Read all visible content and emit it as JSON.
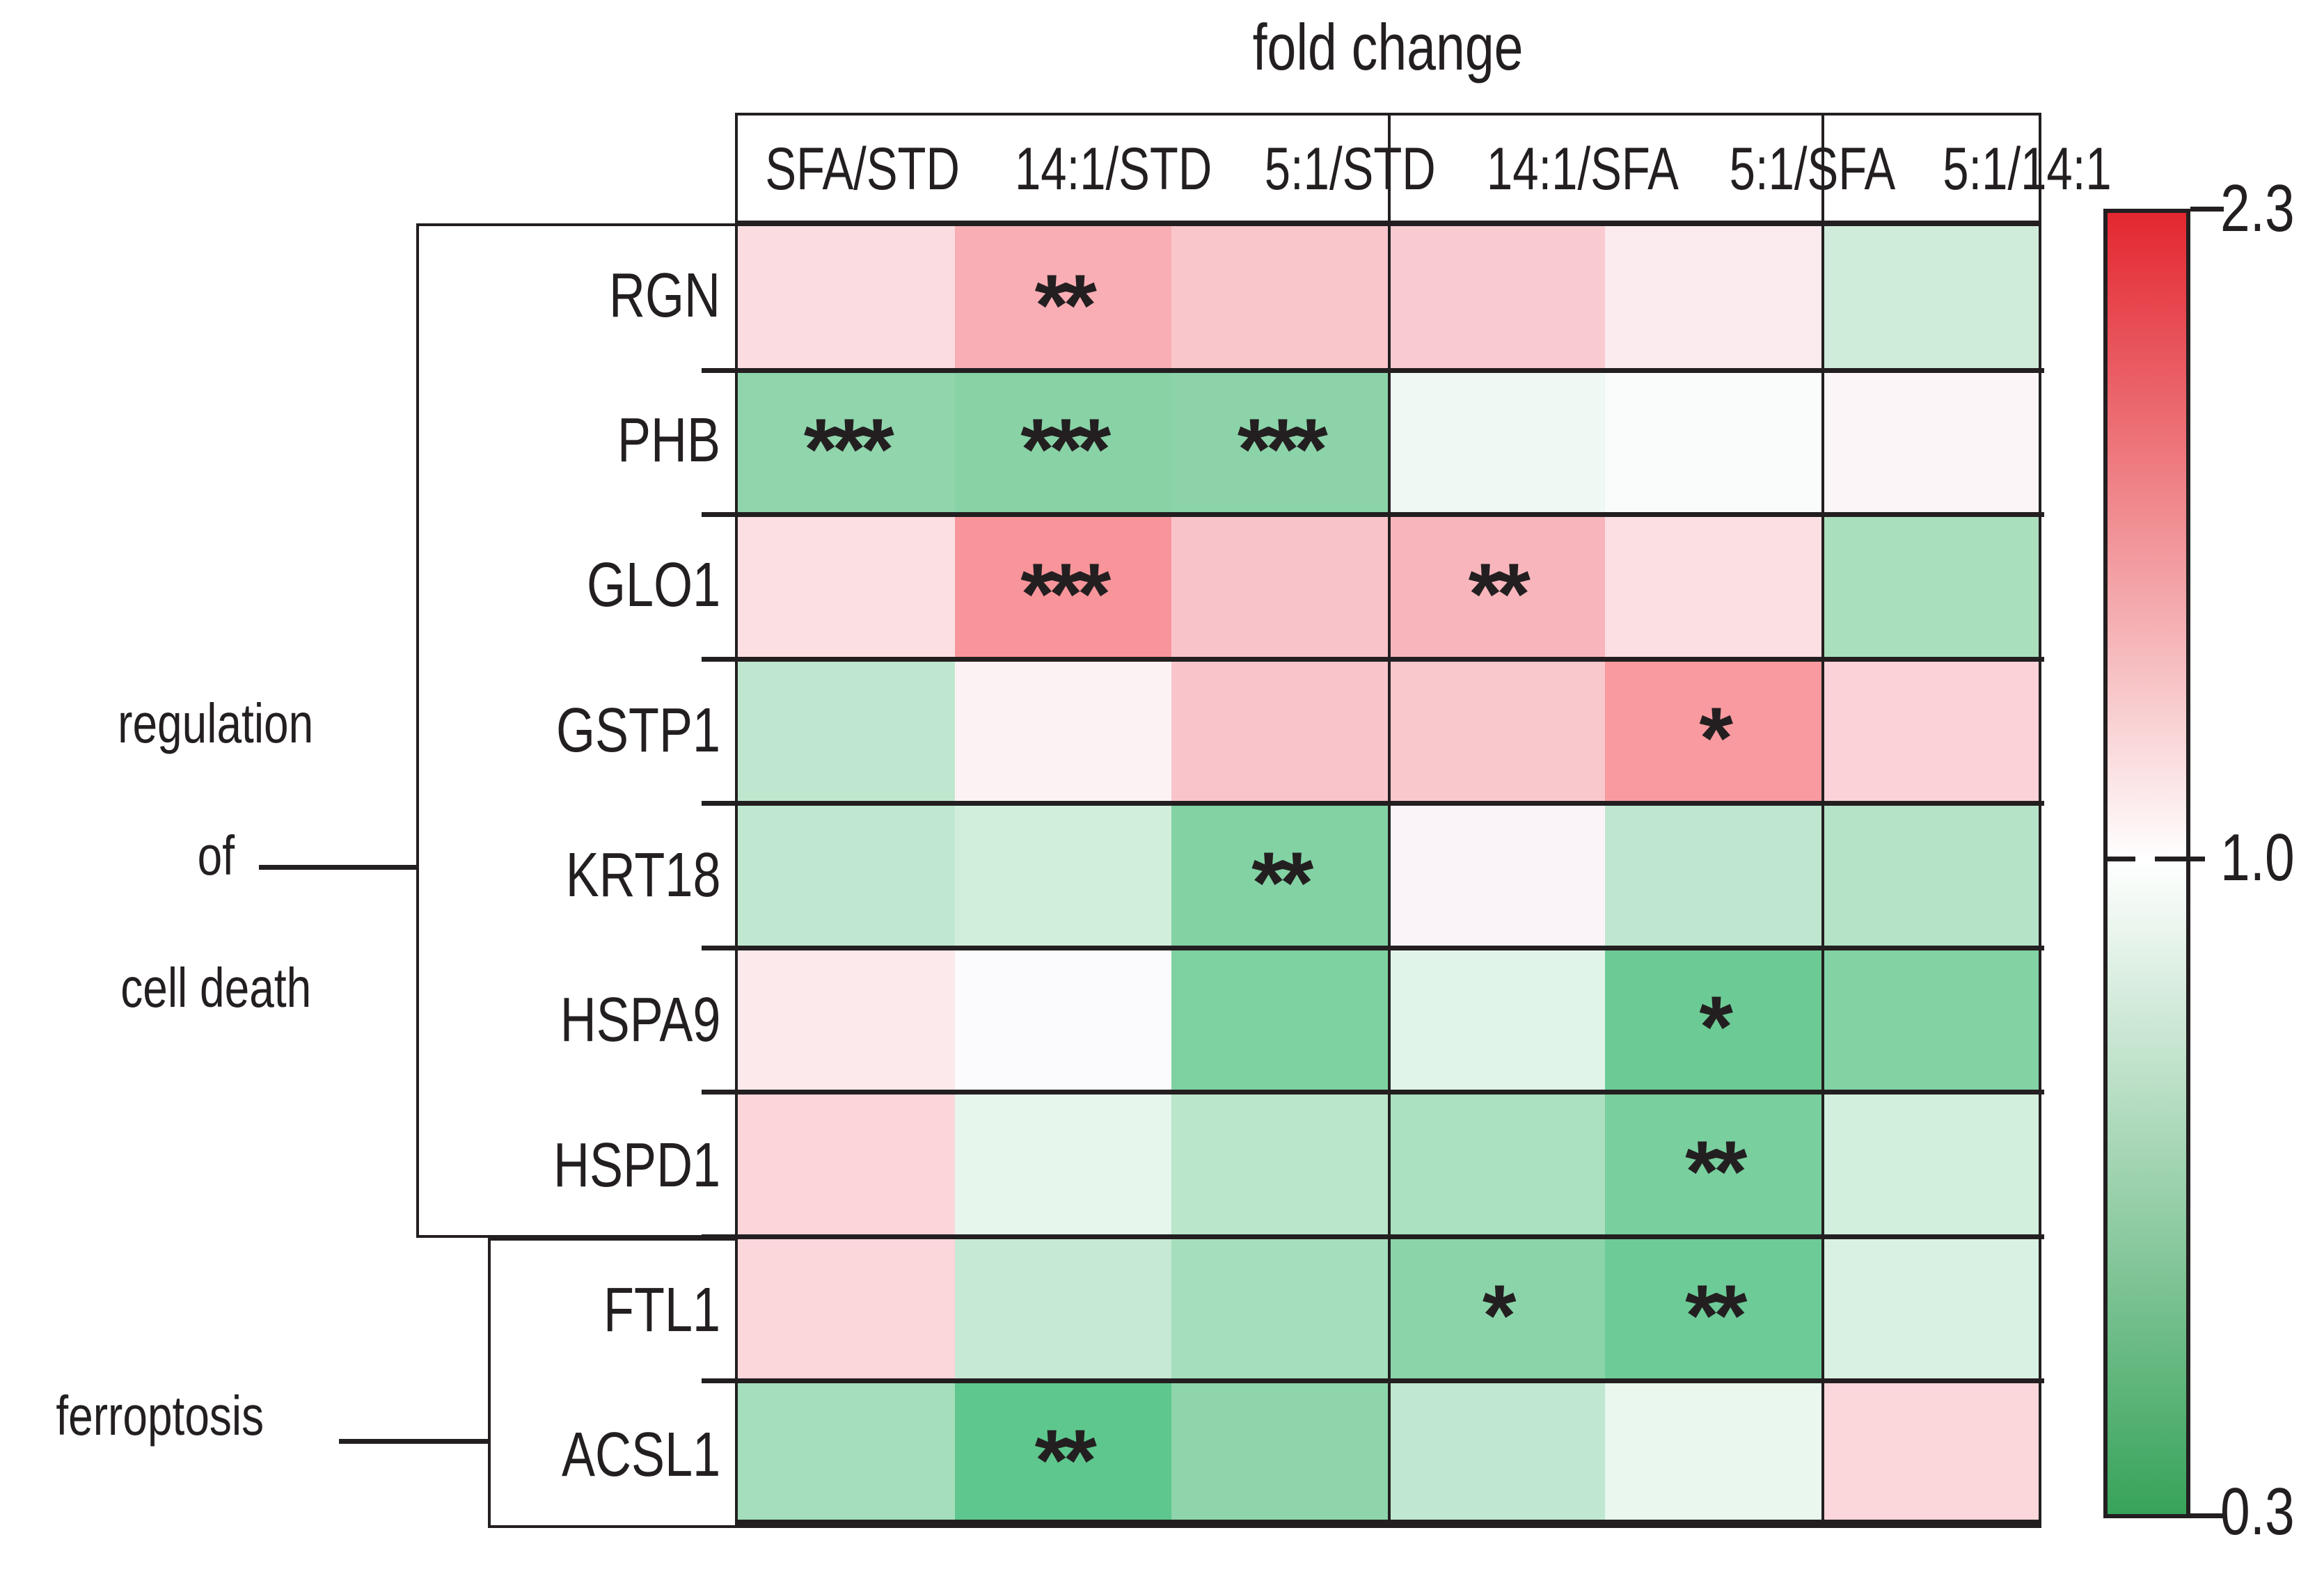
{
  "title": "fold change",
  "columns": [
    "SFA/STD",
    "14:1/STD",
    "5:1/STD",
    "14:1/SFA",
    "5:1/SFA",
    "5:1/14:1"
  ],
  "groups": [
    {
      "name": "regulation of cell death",
      "label_lines": [
        "regulation",
        "of",
        "cell death"
      ],
      "genes": [
        "RGN",
        "PHB",
        "GLO1",
        "GSTP1",
        "KRT18",
        "HSPA9",
        "HSPD1"
      ]
    },
    {
      "name": "ferroptosis",
      "label_lines": [
        "ferroptosis"
      ],
      "genes": [
        "FTL1",
        "ACSL1"
      ]
    }
  ],
  "rows": [
    {
      "gene": "RGN",
      "colors": [
        "#fbdce0",
        "#f8aeb4",
        "#f9c6cb",
        "#f9cbd1",
        "#fcebee",
        "#cfecdb"
      ],
      "stars": [
        "",
        "**",
        "",
        "",
        "",
        ""
      ]
    },
    {
      "gene": "PHB",
      "colors": [
        "#90d5ac",
        "#88d2a6",
        "#8cd3a9",
        "#eff9f4",
        "#fafcfc",
        "#fbf5f8"
      ],
      "stars": [
        "***",
        "***",
        "***",
        "",
        "",
        ""
      ]
    },
    {
      "gene": "GLO1",
      "colors": [
        "#fbdfe2",
        "#f8959b",
        "#f9c4c9",
        "#f8b6bc",
        "#fbdfe3",
        "#aadfbe"
      ],
      "stars": [
        "",
        "***",
        "",
        "**",
        "",
        ""
      ]
    },
    {
      "gene": "GSTP1",
      "colors": [
        "#bfe7cf",
        "#fcf2f4",
        "#f9c5ca",
        "#f9c8cd",
        "#f89aa0",
        "#fad2d7"
      ],
      "stars": [
        "",
        "",
        "",
        "",
        "*",
        ""
      ]
    },
    {
      "gene": "KRT18",
      "colors": [
        "#c0e8d0",
        "#d1eedd",
        "#83d2a4",
        "#faf4f8",
        "#bfe7cf",
        "#b5e3c8"
      ],
      "stars": [
        "",
        "",
        "**",
        "",
        "",
        ""
      ]
    },
    {
      "gene": "HSPA9",
      "colors": [
        "#fce9ec",
        "#fbfbfd",
        "#7ed1a1",
        "#e1f4e9",
        "#6cca95",
        "#82d2a4"
      ],
      "stars": [
        "",
        "",
        "",
        "",
        "*",
        ""
      ]
    },
    {
      "gene": "HSPD1",
      "colors": [
        "#fbd5da",
        "#e6f6ed",
        "#bae6cb",
        "#abe1c1",
        "#79cf9e",
        "#d2efdd"
      ],
      "stars": [
        "",
        "",
        "",
        "",
        "**",
        ""
      ]
    },
    {
      "gene": "FTL1",
      "colors": [
        "#fbd6db",
        "#c5e9d3",
        "#a5debc",
        "#8bd4aa",
        "#6dcb97",
        "#d9f1e2"
      ],
      "stars": [
        "",
        "",
        "",
        "*",
        "**",
        ""
      ]
    },
    {
      "gene": "ACSL1",
      "colors": [
        "#a5debc",
        "#5ec78d",
        "#8ed5ac",
        "#c0e7d0",
        "#e9f7ef",
        "#fbd7dc"
      ],
      "stars": [
        "",
        "**",
        "",
        "",
        "",
        ""
      ]
    }
  ],
  "colorbar": {
    "max_label": "2.3",
    "mid_label": "1.0",
    "min_label": "0.3",
    "max_color": "#e32730",
    "mid_color": "#ffffff",
    "min_color": "#37a35a",
    "mid_position_pct": 49.7
  },
  "line_color": "#231f20",
  "chart_data": {
    "type": "heatmap",
    "title": "fold change",
    "columns": [
      "SFA/STD",
      "14:1/STD",
      "5:1/STD",
      "14:1/SFA",
      "5:1/SFA",
      "5:1/14:1"
    ],
    "rows": [
      "RGN",
      "PHB",
      "GLO1",
      "GSTP1",
      "KRT18",
      "HSPA9",
      "HSPD1",
      "FTL1",
      "ACSL1"
    ],
    "row_groups": [
      {
        "label": "regulation of cell death",
        "rows": [
          "RGN",
          "PHB",
          "GLO1",
          "GSTP1",
          "KRT18",
          "HSPA9",
          "HSPD1"
        ]
      },
      {
        "label": "ferroptosis",
        "rows": [
          "FTL1",
          "ACSL1"
        ]
      }
    ],
    "values_approx": [
      [
        1.17,
        1.45,
        1.31,
        1.29,
        1.1,
        0.86
      ],
      [
        0.66,
        0.64,
        0.65,
        0.96,
        0.99,
        1.02
      ],
      [
        1.14,
        1.59,
        1.27,
        1.33,
        1.13,
        0.75
      ],
      [
        0.8,
        1.05,
        1.27,
        1.25,
        1.56,
        1.2
      ],
      [
        0.81,
        0.87,
        0.63,
        1.03,
        0.81,
        0.79
      ],
      [
        1.09,
        1.01,
        0.64,
        0.92,
        0.56,
        0.6
      ],
      [
        1.18,
        0.93,
        0.8,
        0.76,
        0.58,
        0.87
      ],
      [
        1.17,
        0.84,
        0.74,
        0.66,
        0.57,
        0.9
      ],
      [
        0.74,
        0.51,
        0.68,
        0.82,
        0.94,
        1.17
      ]
    ],
    "significance": [
      [
        "",
        "**",
        "",
        "",
        "",
        ""
      ],
      [
        "***",
        "***",
        "***",
        "",
        "",
        ""
      ],
      [
        "",
        "***",
        "",
        "**",
        "",
        ""
      ],
      [
        "",
        "",
        "",
        "",
        "*",
        ""
      ],
      [
        "",
        "",
        "**",
        "",
        "",
        ""
      ],
      [
        "",
        "",
        "",
        "",
        "*",
        ""
      ],
      [
        "",
        "",
        "",
        "",
        "**",
        ""
      ],
      [
        "",
        "",
        "",
        "*",
        "**",
        ""
      ],
      [
        "",
        "**",
        "",
        "",
        "",
        ""
      ]
    ],
    "colorscale": {
      "min": 0.3,
      "center": 1.0,
      "max": 2.3,
      "min_color": "#37a35a",
      "center_color": "#ffffff",
      "max_color": "#e32730"
    },
    "legend_position": "right",
    "column_group_separators_after": [
      "5:1/STD",
      "5:1/SFA"
    ]
  }
}
